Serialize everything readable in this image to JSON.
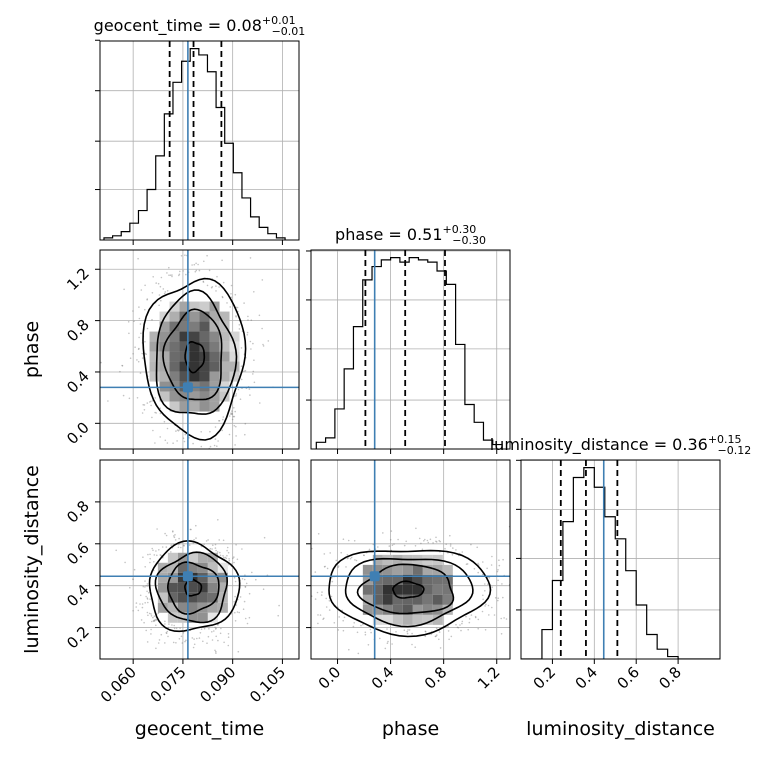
{
  "chart_data": {
    "type": "corner",
    "parameters": [
      "geocent_time",
      "phase",
      "luminosity_distance"
    ],
    "truth_color": "#3f7fb3",
    "panels": [
      {
        "row": 0,
        "col": 0,
        "kind": "hist",
        "param": "geocent_time",
        "title": "geocent_time = 0.08",
        "title_plus": "+0.01",
        "title_minus": "−0.01",
        "xlim": [
          0.05,
          0.11
        ],
        "bins_x": [
          0.0512,
          0.0538,
          0.0564,
          0.059,
          0.0616,
          0.0642,
          0.0668,
          0.0694,
          0.072,
          0.0746,
          0.0772,
          0.0798,
          0.0824,
          0.085,
          0.0876,
          0.0902,
          0.0928,
          0.0954,
          0.098,
          0.1006,
          0.1032,
          0.1058
        ],
        "counts": [
          1,
          2,
          4,
          8,
          14,
          24,
          40,
          60,
          75,
          85,
          91,
          88,
          80,
          63,
          46,
          32,
          20,
          11,
          6,
          3,
          1,
          0
        ],
        "quantiles": [
          0.071,
          0.0782,
          0.0866
        ],
        "truth": 0.0765
      },
      {
        "row": 1,
        "col": 1,
        "kind": "hist",
        "param": "phase",
        "title": "phase = 0.51",
        "title_plus": "+0.30",
        "title_minus": "−0.30",
        "xlim": [
          -0.2,
          1.3
        ],
        "bins_x": [
          -0.16,
          -0.09,
          -0.02,
          0.05,
          0.12,
          0.19,
          0.26,
          0.33,
          0.4,
          0.47,
          0.54,
          0.61,
          0.68,
          0.75,
          0.82,
          0.89,
          0.96,
          1.03,
          1.1,
          1.17,
          1.24
        ],
        "counts": [
          3,
          5,
          18,
          36,
          55,
          76,
          82,
          85,
          86,
          84,
          86,
          85,
          84,
          80,
          74,
          47,
          20,
          12,
          4,
          2
        ],
        "quantiles": [
          0.21,
          0.51,
          0.81
        ],
        "truth": 0.28
      },
      {
        "row": 2,
        "col": 2,
        "kind": "hist",
        "param": "luminosity_distance",
        "title": "luminosity_distance = 0.36",
        "title_plus": "+0.15",
        "title_minus": "−0.12",
        "xlim": [
          0.05,
          1.0
        ],
        "bins_x": [
          0.05,
          0.1,
          0.15,
          0.2,
          0.25,
          0.3,
          0.35,
          0.4,
          0.45,
          0.5,
          0.55,
          0.6,
          0.65,
          0.7,
          0.75,
          0.8,
          0.85,
          0.9,
          0.95,
          1.0
        ],
        "counts": [
          0,
          0,
          12,
          32,
          56,
          74,
          78,
          70,
          58,
          49,
          36,
          22,
          10,
          4,
          1,
          0,
          0,
          0,
          0
        ],
        "quantiles": [
          0.24,
          0.36,
          0.51
        ],
        "truth": 0.445
      },
      {
        "row": 1,
        "col": 0,
        "kind": "density2d",
        "xparam": "geocent_time",
        "yparam": "phase",
        "xlim": [
          0.05,
          0.11
        ],
        "ylim": [
          -0.2,
          1.35
        ],
        "center": [
          0.0785,
          0.52
        ],
        "spread": [
          0.0075,
          0.3
        ],
        "contour_radii": [
          0.9,
          1.5,
          2.05,
          2.6
        ],
        "truth": [
          0.0765,
          0.28
        ]
      },
      {
        "row": 2,
        "col": 0,
        "kind": "density2d",
        "xparam": "geocent_time",
        "yparam": "luminosity_distance",
        "xlim": [
          0.05,
          0.11
        ],
        "ylim": [
          0.05,
          1.0
        ],
        "center": [
          0.078,
          0.39
        ],
        "spread": [
          0.0068,
          0.105
        ],
        "contour_radii": [
          0.85,
          1.45,
          2.0,
          2.55
        ],
        "truth": [
          0.0765,
          0.445
        ]
      },
      {
        "row": 2,
        "col": 1,
        "kind": "density2d",
        "xparam": "phase",
        "yparam": "luminosity_distance",
        "xlim": [
          -0.2,
          1.3
        ],
        "ylim": [
          0.05,
          1.0
        ],
        "center": [
          0.53,
          0.38
        ],
        "spread": [
          0.3,
          0.1
        ],
        "contour_radii": [
          0.9,
          1.5,
          2.05,
          2.6
        ],
        "truth": [
          0.28,
          0.445
        ]
      }
    ],
    "axes": {
      "geocent_time": {
        "ticks": [
          0.06,
          0.075,
          0.09,
          0.105
        ],
        "tick_labels": [
          "0.060",
          "0.075",
          "0.090",
          "0.105"
        ],
        "label": "geocent_time"
      },
      "phase": {
        "ticks": [
          0.0,
          0.4,
          0.8,
          1.2
        ],
        "tick_labels": [
          "0.0",
          "0.4",
          "0.8",
          "1.2"
        ],
        "label": "phase"
      },
      "luminosity_distance": {
        "ticks": [
          0.2,
          0.4,
          0.6,
          0.8
        ],
        "tick_labels": [
          "0.2",
          "0.4",
          "0.6",
          "0.8"
        ],
        "label": "luminosity_distance"
      }
    },
    "grid": true
  }
}
